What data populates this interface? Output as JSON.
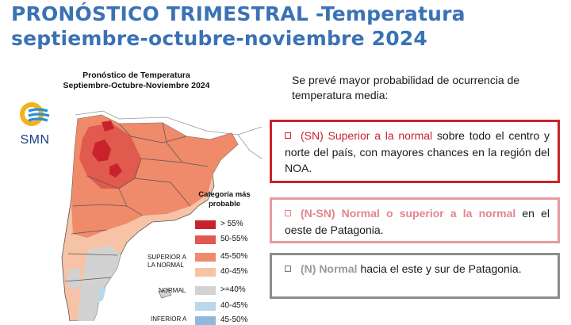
{
  "title": {
    "line1": "PRONÓSTICO TRIMESTRAL -Temperatura",
    "line2": "septiembre-octubre-noviembre 2024"
  },
  "map": {
    "title_line1": "Pronóstico de Temperatura",
    "title_line2": "Septiembre-Octubre-Noviembre 2024",
    "logo_text": "SMN",
    "legend": {
      "title_line1": "Categoría más",
      "title_line2": "probable",
      "items": [
        {
          "label": "> 55%",
          "color": "#c8232c"
        },
        {
          "label": "50-55%",
          "color": "#e05a4e"
        },
        {
          "label": "45-50%",
          "color": "#ef8a6a"
        },
        {
          "label": "40-45%",
          "color": "#f6c3a6"
        },
        {
          "label": ">=40%",
          "color": "#d2d2d2"
        },
        {
          "label": "40-45%",
          "color": "#bcd6ea"
        },
        {
          "label": "45-50%",
          "color": "#8fb9dc"
        }
      ],
      "groups": {
        "superior_line1": "SUPERIOR A",
        "superior_line2": "LA NORMAL",
        "normal": "NORMAL",
        "inferior": "INFERIOR A"
      }
    }
  },
  "intro": "Se prevé mayor probabilidad de ocurrencia de temperatura media:",
  "boxes": [
    {
      "highlight": "(SN) Superior a la normal",
      "rest": " sobre todo el centro y norte del país, con mayores chances en la región del NOA.",
      "border": "#c8232c"
    },
    {
      "highlight": "(N-SN) Normal o superior a la normal",
      "rest": " en el oeste de Patagonia.",
      "border": "#e79aa0"
    },
    {
      "highlight": "(N) Normal",
      "rest": " hacia el este y sur de Patagonia.",
      "border": "#8c8c8c"
    }
  ]
}
